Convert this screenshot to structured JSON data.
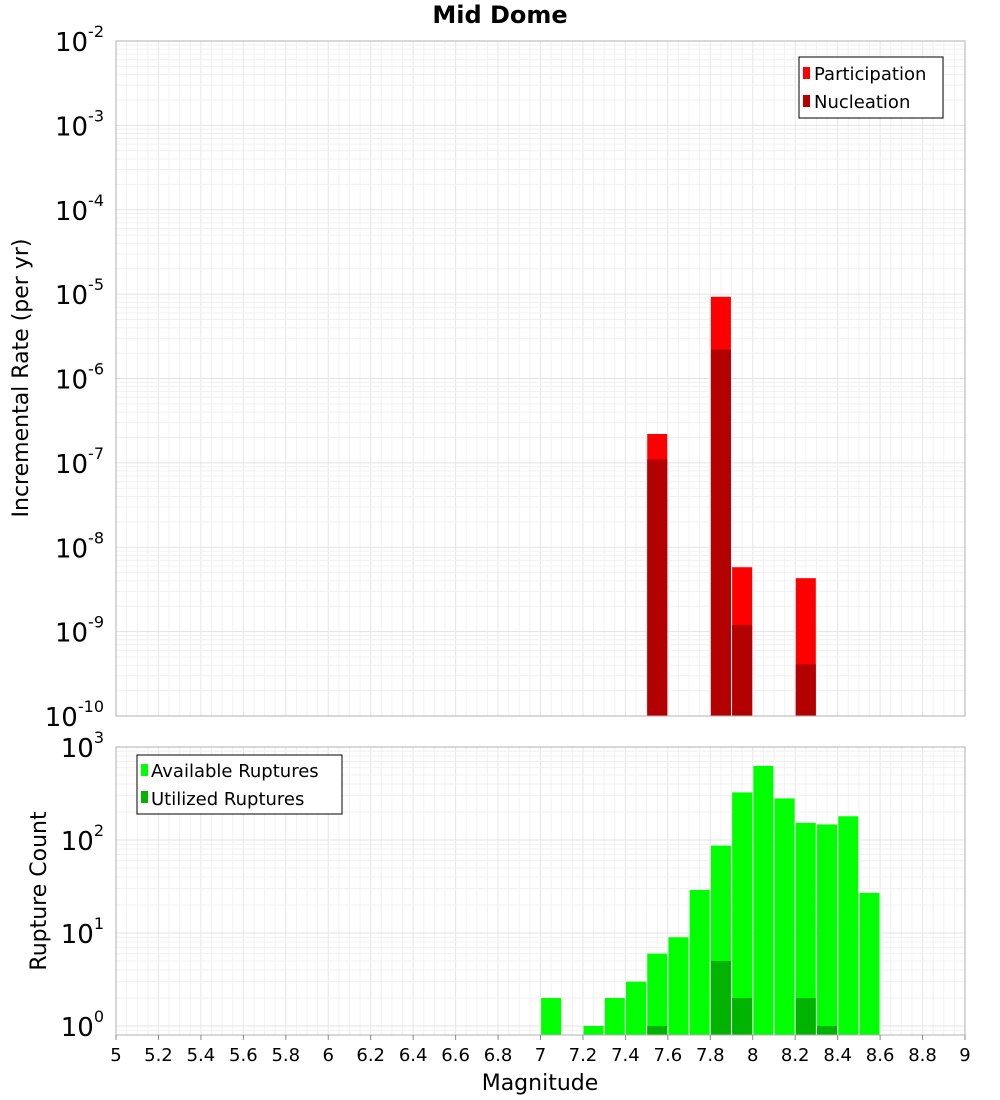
{
  "title": "Mid Dome",
  "chart_data": [
    {
      "type": "bar",
      "name": "rate-panel",
      "ylabel": "Incremental Rate (per yr)",
      "xlabel": "",
      "yscale": "log",
      "ylim": [
        1e-10,
        0.01
      ],
      "xlim": [
        5,
        9
      ],
      "grid": true,
      "legend_position": "top-right",
      "y_ticks": [
        {
          "base": "10",
          "exp": "-2",
          "value": 0.01
        },
        {
          "base": "10",
          "exp": "-3",
          "value": 0.001
        },
        {
          "base": "10",
          "exp": "-4",
          "value": 0.0001
        },
        {
          "base": "10",
          "exp": "-5",
          "value": 1e-05
        },
        {
          "base": "10",
          "exp": "-6",
          "value": 1e-06
        },
        {
          "base": "10",
          "exp": "-7",
          "value": 1e-07
        },
        {
          "base": "10",
          "exp": "-8",
          "value": 1e-08
        },
        {
          "base": "10",
          "exp": "-9",
          "value": 1e-09
        },
        {
          "base": "10",
          "exp": "-10",
          "value": 1e-10
        }
      ],
      "series": [
        {
          "name": "Participation",
          "color": "#ff0000",
          "points": [
            {
              "x": 7.55,
              "y": 2.2e-07
            },
            {
              "x": 7.85,
              "y": 9.3e-06
            },
            {
              "x": 7.95,
              "y": 5.8e-09
            },
            {
              "x": 8.25,
              "y": 4.3e-09
            }
          ]
        },
        {
          "name": "Nucleation",
          "color": "#b30000",
          "points": [
            {
              "x": 7.55,
              "y": 1.1e-07
            },
            {
              "x": 7.85,
              "y": 2.2e-06
            },
            {
              "x": 7.95,
              "y": 1.2e-09
            },
            {
              "x": 8.25,
              "y": 4.1e-10
            }
          ]
        }
      ]
    },
    {
      "type": "bar",
      "name": "count-panel",
      "ylabel": "Rupture Count",
      "xlabel": "Magnitude",
      "yscale": "log",
      "ylim": [
        0.8,
        1000
      ],
      "xlim": [
        5,
        9
      ],
      "grid": true,
      "legend_position": "top-left",
      "x_ticks": [
        "5",
        "5.2",
        "5.4",
        "5.6",
        "5.8",
        "6",
        "6.2",
        "6.4",
        "6.6",
        "6.8",
        "7",
        "7.2",
        "7.4",
        "7.6",
        "7.8",
        "8",
        "8.2",
        "8.4",
        "8.6",
        "8.8",
        "9"
      ],
      "y_ticks": [
        {
          "base": "10",
          "exp": "3",
          "value": 1000
        },
        {
          "base": "10",
          "exp": "2",
          "value": 100
        },
        {
          "base": "10",
          "exp": "1",
          "value": 10
        },
        {
          "base": "10",
          "exp": "0",
          "value": 1
        }
      ],
      "series": [
        {
          "name": "Available Ruptures",
          "color": "#00ff00",
          "points": [
            {
              "x": 7.05,
              "y": 2
            },
            {
              "x": 7.25,
              "y": 1
            },
            {
              "x": 7.35,
              "y": 2
            },
            {
              "x": 7.45,
              "y": 3
            },
            {
              "x": 7.55,
              "y": 6
            },
            {
              "x": 7.65,
              "y": 9
            },
            {
              "x": 7.75,
              "y": 29
            },
            {
              "x": 7.85,
              "y": 87
            },
            {
              "x": 7.95,
              "y": 325
            },
            {
              "x": 8.05,
              "y": 626
            },
            {
              "x": 8.15,
              "y": 280
            },
            {
              "x": 8.25,
              "y": 153
            },
            {
              "x": 8.35,
              "y": 147
            },
            {
              "x": 8.45,
              "y": 180
            },
            {
              "x": 8.55,
              "y": 27
            }
          ]
        },
        {
          "name": "Utilized Ruptures",
          "color": "#00b300",
          "points": [
            {
              "x": 7.55,
              "y": 1
            },
            {
              "x": 7.85,
              "y": 5
            },
            {
              "x": 7.95,
              "y": 2
            },
            {
              "x": 8.25,
              "y": 2
            },
            {
              "x": 8.35,
              "y": 1
            }
          ]
        }
      ]
    }
  ]
}
